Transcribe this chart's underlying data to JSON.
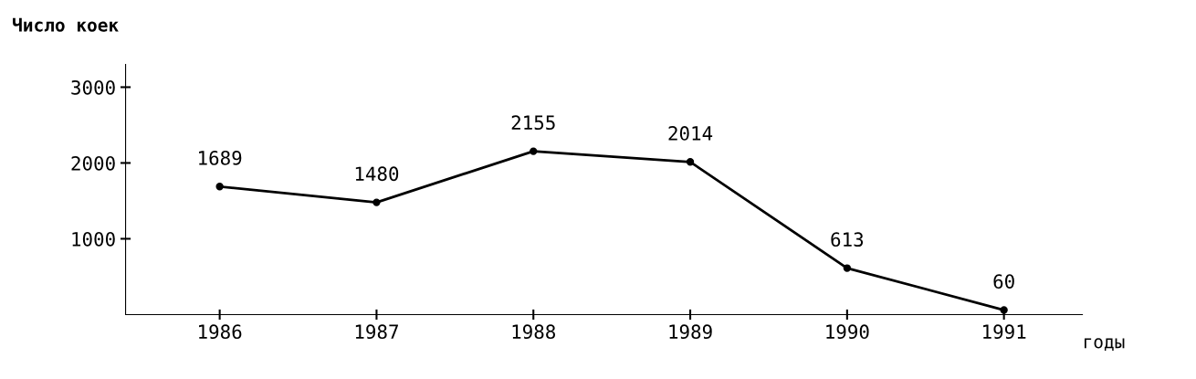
{
  "chart_data": {
    "type": "line",
    "ylabel": "Число коек",
    "xlabel": "годы",
    "categories": [
      "1986",
      "1987",
      "1988",
      "1989",
      "1990",
      "1991"
    ],
    "series": [
      {
        "color": "#000000",
        "values": [
          1689,
          1480,
          2155,
          2014,
          613,
          60
        ]
      }
    ],
    "data_labels": true,
    "ylim": [
      0,
      3300
    ],
    "yticks": [
      1000,
      2000,
      3000
    ],
    "marker": "circle",
    "line_style": "solid",
    "grid": false,
    "legend": false
  }
}
